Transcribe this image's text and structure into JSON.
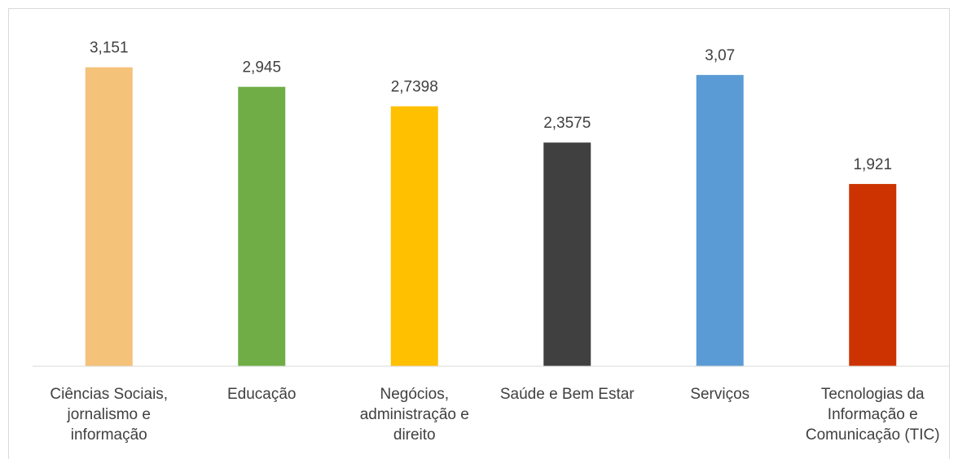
{
  "chart_data": {
    "type": "bar",
    "categories": [
      "Ciências Sociais, jornalismo e informação",
      "Educação",
      "Negócios, administração e direito",
      "Saúde e Bem Estar",
      "Serviços",
      "Tecnologias da Informação e Comunicação (TIC)"
    ],
    "values": [
      3.151,
      2.945,
      2.7398,
      2.3575,
      3.07,
      1.921
    ],
    "value_labels": [
      "3,151",
      "2,945",
      "2,7398",
      "2,3575",
      "3,07",
      "1,921"
    ],
    "colors": [
      "#f5c27a",
      "#70ad47",
      "#ffc000",
      "#404040",
      "#5b9bd5",
      "#cc3300"
    ],
    "ylim": [
      0,
      3.5
    ]
  }
}
